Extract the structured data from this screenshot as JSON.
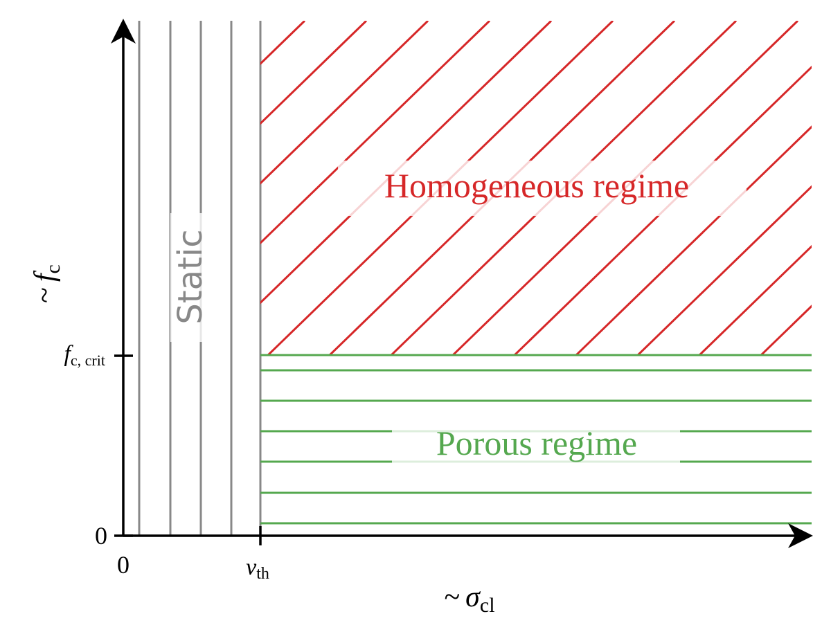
{
  "axes": {
    "x_label": {
      "prefix": "~",
      "symbol": "σ",
      "subscript": "cl"
    },
    "y_label": {
      "prefix": "~",
      "symbol": "f",
      "subscript": "c"
    },
    "x_ticks": [
      {
        "label": "0"
      },
      {
        "symbol": "v",
        "subscript": "th"
      }
    ],
    "y_ticks": [
      {
        "label": "0"
      },
      {
        "symbol": "f",
        "subscript": "c, crit"
      }
    ]
  },
  "regions": {
    "static": "Static",
    "homogeneous": "Homogeneous regime",
    "porous": "Porous regime"
  }
}
